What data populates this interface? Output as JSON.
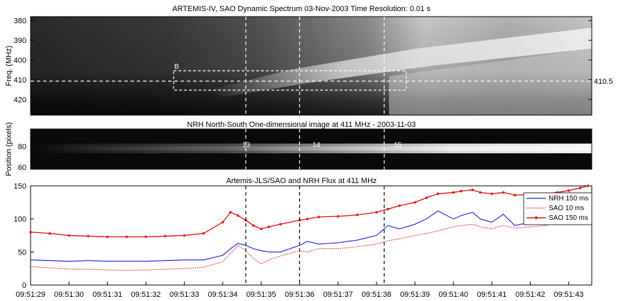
{
  "chart_data": [
    {
      "type": "heatmap",
      "title": "ARTEMIS-IV, SAO Dynamic Spectrum 03-Nov-2003 Time Resolution: 0.01 s",
      "ylabel": "Freq. (MHz)",
      "y_ticks": [
        "380",
        "390",
        "400",
        "410",
        "420"
      ],
      "ylim": [
        378,
        428
      ],
      "y_inverted": true,
      "grid": false,
      "colormap": "grayscale",
      "box_label": "B",
      "box_freq_range": [
        405,
        414
      ],
      "box_time_range": [
        "09:51:33.6",
        "09:51:38.5"
      ],
      "hline_freq": 410.5,
      "hline_label": "410.5"
    },
    {
      "type": "heatmap",
      "title": "NRH North-South One-dimensional image at 411 MHz  -  2003-11-03",
      "ylabel": "Position (pixels)",
      "y_ticks": [
        "80",
        "60"
      ],
      "ylim": [
        55,
        95
      ],
      "grid": false,
      "colormap": "grayscale",
      "source_position": 78,
      "markers": [
        "13",
        "14",
        "15"
      ]
    },
    {
      "type": "line",
      "title": "Artemis-JLS/SAO and NRH Flux at 411 MHz",
      "xlabel": "",
      "ylabel": "",
      "ylim": [
        0,
        150
      ],
      "y_ticks": [
        "0",
        "50",
        "100",
        "150"
      ],
      "grid": false,
      "legend_placement": "top-right",
      "x_tick_labels": [
        "09:51:29",
        "09:51:30",
        "09:51:31",
        "09:51:32",
        "09:51:33",
        "09:51:34",
        "09:51:35",
        "09:51:36",
        "09:51:37",
        "09:51:38",
        "09:51:39",
        "09:51:40",
        "09:51:41",
        "09:51:42",
        "09:51:43"
      ],
      "x_start": "09:51:29",
      "x_end": "09:51:43.6",
      "x": [
        "09:51:29.0",
        "09:51:29.5",
        "09:51:30.0",
        "09:51:30.5",
        "09:51:31.0",
        "09:51:31.5",
        "09:51:32.0",
        "09:51:32.5",
        "09:51:33.0",
        "09:51:33.5",
        "09:51:34.0",
        "09:51:34.2",
        "09:51:34.4",
        "09:51:34.6",
        "09:51:34.8",
        "09:51:35.0",
        "09:51:35.2",
        "09:51:35.5",
        "09:51:36.0",
        "09:51:36.2",
        "09:51:36.5",
        "09:51:37.0",
        "09:51:37.5",
        "09:51:38.0",
        "09:51:38.3",
        "09:51:38.6",
        "09:51:39.0",
        "09:51:39.3",
        "09:51:39.6",
        "09:51:40.0",
        "09:51:40.2",
        "09:51:40.5",
        "09:51:40.7",
        "09:51:41.0",
        "09:51:41.3",
        "09:51:41.6",
        "09:51:42.0",
        "09:51:42.4",
        "09:51:42.7",
        "09:51:43.0",
        "09:51:43.3",
        "09:51:43.5"
      ],
      "series": [
        {
          "name": "NRH 150 ms",
          "color": "#1a1adf",
          "style": "solid",
          "values": [
            38,
            37,
            36,
            37,
            36,
            36,
            36,
            37,
            38,
            38,
            45,
            55,
            63,
            60,
            55,
            52,
            50,
            50,
            60,
            66,
            62,
            64,
            68,
            75,
            90,
            85,
            92,
            100,
            112,
            100,
            105,
            110,
            100,
            95,
            107,
            90,
            95,
            108,
            115,
            110,
            112,
            120
          ]
        },
        {
          "name": "SAO 10 ms",
          "color": "#e31a1a",
          "style": "dotted",
          "values": [
            28,
            26,
            24,
            24,
            23,
            22,
            23,
            24,
            25,
            27,
            35,
            48,
            60,
            52,
            40,
            32,
            38,
            44,
            52,
            50,
            55,
            55,
            58,
            62,
            67,
            70,
            75,
            78,
            82,
            88,
            90,
            92,
            88,
            85,
            90,
            86,
            88,
            90,
            95,
            93,
            97,
            100
          ]
        },
        {
          "name": "SAO 150 ms",
          "color": "#e31a1a",
          "style": "solid-markers",
          "values": [
            80,
            78,
            75,
            74,
            73,
            73,
            73,
            74,
            75,
            78,
            95,
            110,
            105,
            98,
            90,
            85,
            88,
            92,
            98,
            100,
            103,
            104,
            106,
            110,
            115,
            120,
            125,
            132,
            138,
            140,
            142,
            144,
            140,
            138,
            140,
            136,
            137,
            138,
            140,
            143,
            147,
            150
          ]
        }
      ]
    }
  ],
  "annotations": {
    "vlines": [
      "09:51:34.6",
      "09:51:36.0",
      "09:51:38.2"
    ]
  }
}
